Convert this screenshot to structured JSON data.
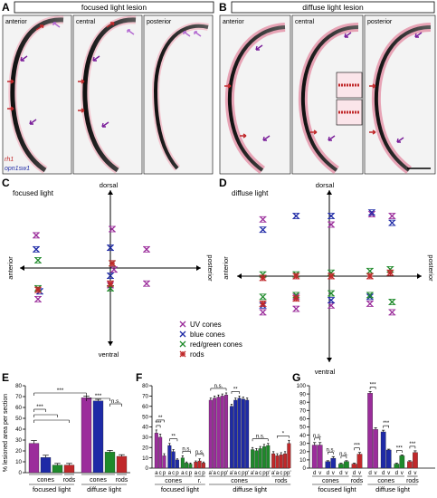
{
  "panels": {
    "A": {
      "letter": "A",
      "title": "focused light lesion",
      "sections": [
        "anterior",
        "central",
        "posterior"
      ]
    },
    "B": {
      "letter": "B",
      "title": "diffuse light lesion",
      "sections": [
        "anterior",
        "central",
        "posterior"
      ]
    },
    "stain_legend": {
      "rh1": "rh1",
      "opn1sw1": "opn1sw1"
    },
    "C": {
      "letter": "C",
      "title": "focused light",
      "axis_dorsal": "dorsal",
      "axis_ventral": "ventral",
      "axis_anterior": "anterior",
      "axis_posterior": "posterior"
    },
    "D": {
      "letter": "D",
      "title": "diffuse light",
      "axis_dorsal": "dorsal",
      "axis_ventral": "ventral",
      "axis_anterior": "anterior",
      "axis_posterior": "posterior"
    },
    "legend": [
      {
        "label": "UV cones",
        "color": "#9b2d9b",
        "marker": "x"
      },
      {
        "label": "blue cones",
        "color": "#1e2aa6",
        "marker": "x"
      },
      {
        "label": "red/green cones",
        "color": "#1e8a2a",
        "marker": "x"
      },
      {
        "label": "rods",
        "color": "#c0282a",
        "marker": "asterisk"
      }
    ],
    "E": {
      "letter": "E"
    },
    "F": {
      "letter": "F"
    },
    "G": {
      "letter": "G"
    }
  },
  "colors": {
    "uv": "#9b2d9b",
    "blue": "#1e2aa6",
    "green": "#1e8a2a",
    "red": "#c0282a"
  },
  "chart_data": [
    {
      "id": "E",
      "type": "bar",
      "ylabel": "% lesioned area per section",
      "ylim": [
        0,
        80
      ],
      "yticks": [
        0,
        10,
        20,
        30,
        40,
        50,
        60,
        70,
        80
      ],
      "categories": [
        "focused UV",
        "focused blue",
        "focused red/green",
        "focused rods",
        "diffuse UV",
        "diffuse blue",
        "diffuse red/green",
        "diffuse rods"
      ],
      "values": [
        27,
        14,
        7,
        7,
        69,
        66,
        19,
        15
      ],
      "errors": [
        2.5,
        2.0,
        1.5,
        1.5,
        1.5,
        1.5,
        1.5,
        1.5
      ],
      "colors": [
        "uv",
        "blue",
        "green",
        "red",
        "uv",
        "blue",
        "green",
        "red"
      ],
      "group_labels": [
        {
          "sub": "cones",
          "from": 0,
          "to": 2
        },
        {
          "sub": "rods",
          "from": 3,
          "to": 3
        },
        {
          "sub": "cones",
          "from": 4,
          "to": 6
        },
        {
          "sub": "rods",
          "from": 7,
          "to": 7
        }
      ],
      "conditions": [
        {
          "label": "focused light",
          "from": 0,
          "to": 3
        },
        {
          "label": "diffuse light",
          "from": 4,
          "to": 7
        }
      ],
      "significance": [
        {
          "from": 0,
          "to": 4,
          "label": "***",
          "level": 0
        },
        {
          "from": 0,
          "to": 1,
          "label": "***",
          "level": 3
        },
        {
          "from": 0,
          "to": 2,
          "label": "",
          "level": 4
        },
        {
          "from": 0,
          "to": 3,
          "label": "",
          "level": 5
        },
        {
          "from": 4,
          "to": 6,
          "label": "***",
          "level": 1
        },
        {
          "from": 6,
          "to": 7,
          "label": "n.s.",
          "level": 2
        }
      ]
    },
    {
      "id": "F",
      "type": "bar",
      "ylim": [
        0,
        80
      ],
      "yticks": [
        0,
        10,
        20,
        30,
        40,
        50,
        60,
        70,
        80
      ],
      "groups": [
        {
          "cond": "focused",
          "color": "uv",
          "ticks": [
            "a",
            "c",
            "p"
          ],
          "values": [
            34,
            30,
            12
          ],
          "errors": [
            3,
            3,
            2
          ]
        },
        {
          "cond": "focused",
          "color": "blue",
          "ticks": [
            "a",
            "c",
            "p"
          ],
          "values": [
            22,
            16,
            8
          ],
          "errors": [
            2,
            2,
            1
          ]
        },
        {
          "cond": "focused",
          "color": "green",
          "ticks": [
            "a",
            "c",
            "p"
          ],
          "values": [
            10,
            5,
            4
          ],
          "errors": [
            2,
            1,
            1
          ]
        },
        {
          "cond": "focused",
          "color": "red",
          "ticks": [
            "a",
            "c",
            "p"
          ],
          "values": [
            6,
            7,
            5
          ],
          "errors": [
            1,
            2,
            1
          ]
        },
        {
          "cond": "diffuse",
          "color": "uv",
          "ticks": [
            "a'",
            "a",
            "c",
            "p",
            "p'"
          ],
          "values": [
            66,
            68,
            69,
            70,
            71
          ],
          "errors": [
            2,
            2,
            2,
            2,
            2
          ]
        },
        {
          "cond": "diffuse",
          "color": "blue",
          "ticks": [
            "a'",
            "a",
            "c",
            "p",
            "p'"
          ],
          "values": [
            60,
            66,
            68,
            67,
            66
          ],
          "errors": [
            2,
            2,
            2,
            2,
            2
          ]
        },
        {
          "cond": "diffuse",
          "color": "green",
          "ticks": [
            "a'",
            "a",
            "c",
            "p",
            "p'"
          ],
          "values": [
            18,
            17,
            19,
            21,
            22
          ],
          "errors": [
            2,
            2,
            2,
            2,
            2
          ]
        },
        {
          "cond": "diffuse",
          "color": "red",
          "ticks": [
            "a'",
            "a",
            "c",
            "p",
            "p'"
          ],
          "values": [
            14,
            12,
            13,
            14,
            24
          ],
          "errors": [
            2,
            2,
            2,
            2,
            3
          ]
        }
      ],
      "under_labels": [
        {
          "text": "cones",
          "from_group": 0,
          "to_group": 2
        },
        {
          "text": "r.",
          "from_group": 3,
          "to_group": 3
        },
        {
          "text": "cones",
          "from_group": 4,
          "to_group": 6
        },
        {
          "text": "rods",
          "from_group": 7,
          "to_group": 7
        }
      ],
      "conditions": [
        {
          "label": "focused light",
          "from_group": 0,
          "to_group": 3
        },
        {
          "label": "diffuse light",
          "from_group": 4,
          "to_group": 7
        }
      ],
      "significance": [
        {
          "group": 0,
          "from": 0,
          "to": 1,
          "label": "***",
          "level": 0
        },
        {
          "group": 0,
          "from": 0,
          "to": 2,
          "label": "**",
          "level": 1
        },
        {
          "group": 1,
          "from": 0,
          "to": 2,
          "label": "**",
          "level": 0
        },
        {
          "group": 2,
          "from": 0,
          "to": 2,
          "label": "n.s.",
          "level": 0
        },
        {
          "group": 3,
          "from": 0,
          "to": 2,
          "label": "n.s.",
          "level": 0
        },
        {
          "group": 4,
          "from": 0,
          "to": 4,
          "label": "n.s.",
          "level": 0
        },
        {
          "group": 5,
          "from": 0,
          "to": 2,
          "label": "**",
          "level": 0
        },
        {
          "group": 6,
          "from": 0,
          "to": 4,
          "label": "n.s.",
          "level": 0
        },
        {
          "group": 7,
          "from": 1,
          "to": 4,
          "label": "*",
          "level": 0
        }
      ]
    },
    {
      "id": "G",
      "type": "bar",
      "ylim": [
        0,
        100
      ],
      "yticks": [
        0,
        10,
        20,
        30,
        40,
        50,
        60,
        70,
        80,
        90,
        100
      ],
      "groups": [
        {
          "cond": "focused",
          "color": "uv",
          "ticks": [
            "d",
            "v"
          ],
          "values": [
            28,
            28
          ],
          "errors": [
            3,
            3
          ]
        },
        {
          "cond": "focused",
          "color": "blue",
          "ticks": [
            "d",
            "v"
          ],
          "values": [
            8,
            12
          ],
          "errors": [
            1,
            2
          ]
        },
        {
          "cond": "focused",
          "color": "green",
          "ticks": [
            "d",
            "v"
          ],
          "values": [
            5,
            8
          ],
          "errors": [
            1,
            1
          ]
        },
        {
          "cond": "focused",
          "color": "red",
          "ticks": [
            "d",
            "v"
          ],
          "values": [
            5,
            17
          ],
          "errors": [
            1,
            2
          ]
        },
        {
          "cond": "diffuse",
          "color": "uv",
          "ticks": [
            "d",
            "v"
          ],
          "values": [
            91,
            47
          ],
          "errors": [
            2,
            2
          ]
        },
        {
          "cond": "diffuse",
          "color": "blue",
          "ticks": [
            "d",
            "v"
          ],
          "values": [
            44,
            22
          ],
          "errors": [
            2,
            1
          ]
        },
        {
          "cond": "diffuse",
          "color": "green",
          "ticks": [
            "d",
            "v"
          ],
          "values": [
            5,
            15
          ],
          "errors": [
            1,
            1
          ]
        },
        {
          "cond": "diffuse",
          "color": "red",
          "ticks": [
            "d",
            "v"
          ],
          "values": [
            8,
            19
          ],
          "errors": [
            1,
            2
          ]
        }
      ],
      "under_labels": [
        {
          "text": "cones",
          "from_group": 0,
          "to_group": 2
        },
        {
          "text": "rods",
          "from_group": 3,
          "to_group": 3
        },
        {
          "text": "cones",
          "from_group": 4,
          "to_group": 6
        },
        {
          "text": "rods",
          "from_group": 7,
          "to_group": 7
        }
      ],
      "conditions": [
        {
          "label": "focused light",
          "from_group": 0,
          "to_group": 3
        },
        {
          "label": "diffuse light",
          "from_group": 4,
          "to_group": 7
        }
      ],
      "significance": [
        {
          "group": 0,
          "label": "n.s."
        },
        {
          "group": 1,
          "label": "n.s."
        },
        {
          "group": 2,
          "label": "n.s."
        },
        {
          "group": 3,
          "label": "***"
        },
        {
          "group": 4,
          "label": "***"
        },
        {
          "group": 5,
          "label": "***"
        },
        {
          "group": 6,
          "label": "***"
        },
        {
          "group": 7,
          "label": "***"
        }
      ]
    },
    {
      "id": "C",
      "type": "scatter",
      "xlim": [
        -5,
        5
      ],
      "ylim": [
        -5,
        5
      ],
      "series": [
        {
          "name": "UV cones",
          "color": "uv",
          "marker": "x",
          "points": [
            [
              -4.1,
              2.1
            ],
            [
              0.1,
              2.5
            ],
            [
              2.0,
              1.2
            ],
            [
              -4.0,
              -2.0
            ],
            [
              0.0,
              -1.1
            ],
            [
              2.0,
              -1.0
            ],
            [
              0.2,
              -0.1
            ]
          ]
        },
        {
          "name": "blue cones",
          "color": "blue",
          "marker": "x",
          "points": [
            [
              -4.1,
              1.2
            ],
            [
              0.0,
              1.3
            ],
            [
              -3.9,
              -1.5
            ],
            [
              0.0,
              -0.5
            ]
          ]
        },
        {
          "name": "red/green cones",
          "color": "green",
          "marker": "x",
          "points": [
            [
              -4.0,
              0.5
            ],
            [
              0.1,
              0.3
            ],
            [
              -4.0,
              -1.3
            ],
            [
              0.0,
              -1.3
            ]
          ]
        },
        {
          "name": "rods",
          "color": "red",
          "marker": "asterisk",
          "points": [
            [
              -4.0,
              -1.4
            ],
            [
              0.1,
              0.3
            ],
            [
              0.0,
              -1.0
            ]
          ]
        }
      ]
    },
    {
      "id": "D",
      "type": "scatter",
      "xlim": [
        -5,
        5
      ],
      "ylim": [
        -5,
        5
      ],
      "series": [
        {
          "name": "UV cones",
          "color": "uv",
          "marker": "x",
          "points": [
            [
              -3.6,
              3.3
            ],
            [
              -3.6,
              -2.1
            ],
            [
              -1.8,
              -1.9
            ],
            [
              0.1,
              3.0
            ],
            [
              2.3,
              3.6
            ],
            [
              3.4,
              3.5
            ],
            [
              2.2,
              -1.6
            ],
            [
              3.4,
              -2.1
            ],
            [
              0.1,
              -1.7
            ],
            [
              -1.8,
              -1.2
            ]
          ]
        },
        {
          "name": "blue cones",
          "color": "blue",
          "marker": "x",
          "points": [
            [
              -3.6,
              2.7
            ],
            [
              -1.8,
              3.5
            ],
            [
              0.1,
              3.5
            ],
            [
              2.3,
              3.7
            ],
            [
              3.4,
              3.1
            ],
            [
              -3.6,
              -1.7
            ],
            [
              2.2,
              -1.2
            ],
            [
              0.1,
              -1.4
            ]
          ]
        },
        {
          "name": "red/green cones",
          "color": "green",
          "marker": "x",
          "points": [
            [
              -3.6,
              0.1
            ],
            [
              -1.8,
              0.1
            ],
            [
              0.1,
              0.2
            ],
            [
              2.2,
              0.3
            ],
            [
              3.3,
              0.4
            ],
            [
              -3.6,
              -1.2
            ],
            [
              -1.8,
              -1.1
            ],
            [
              0.1,
              -1.0
            ],
            [
              2.2,
              -1.1
            ],
            [
              3.4,
              -1.5
            ]
          ]
        },
        {
          "name": "rods",
          "color": "red",
          "marker": "asterisk",
          "points": [
            [
              -3.6,
              -0.1
            ],
            [
              -1.8,
              0.0
            ],
            [
              0.1,
              0.0
            ],
            [
              2.2,
              0.0
            ],
            [
              3.3,
              0.2
            ],
            [
              -3.6,
              -1.6
            ],
            [
              -1.8,
              -1.3
            ]
          ]
        }
      ]
    }
  ]
}
